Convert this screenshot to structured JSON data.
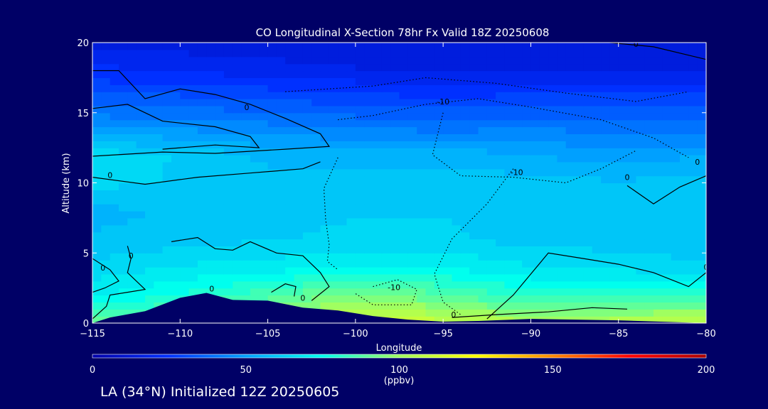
{
  "chart_data": {
    "type": "heatmap",
    "title": "CO Longitudinal X-Section 78hr  Fx Valid 18Z 20250608",
    "xlabel": "Longitude",
    "ylabel": "Altitude (km)",
    "xlim": [
      -115,
      -80
    ],
    "ylim": [
      0,
      20
    ],
    "x_ticks": [
      "-115",
      "-110",
      "-105",
      "-100",
      "-95",
      "-90",
      "-85",
      "-80"
    ],
    "y_ticks": [
      "0",
      "5",
      "10",
      "15",
      "20"
    ],
    "colorbar": {
      "label": "(ppbv)",
      "range": [
        0,
        200
      ],
      "ticks": [
        "0",
        "50",
        "100",
        "150",
        "200"
      ],
      "colors": [
        "#0000aa",
        "#0030ff",
        "#00a0ff",
        "#00ffee",
        "#a0ff60",
        "#ffff00",
        "#ff8800",
        "#ff0000",
        "#aa0000"
      ]
    },
    "co_field_ppbv": {
      "x": [
        -115,
        -110,
        -105,
        -100,
        -95,
        -90,
        -85,
        -80
      ],
      "y": [
        0,
        2,
        4,
        6,
        8,
        10,
        12,
        14,
        16,
        18,
        20
      ],
      "z": [
        [
          90,
          95,
          100,
          112,
          110,
          104,
          106,
          110
        ],
        [
          72,
          78,
          86,
          95,
          88,
          80,
          80,
          82
        ],
        [
          64,
          68,
          70,
          72,
          72,
          68,
          66,
          64
        ],
        [
          58,
          60,
          62,
          64,
          64,
          60,
          60,
          58
        ],
        [
          56,
          58,
          60,
          62,
          62,
          60,
          58,
          58
        ],
        [
          64,
          62,
          60,
          60,
          60,
          60,
          58,
          60
        ],
        [
          66,
          62,
          56,
          55,
          56,
          52,
          50,
          52
        ],
        [
          48,
          46,
          44,
          42,
          40,
          42,
          40,
          40
        ],
        [
          34,
          34,
          32,
          30,
          28,
          30,
          30,
          30
        ],
        [
          24,
          22,
          20,
          18,
          16,
          16,
          16,
          16
        ],
        [
          16,
          15,
          14,
          14,
          12,
          12,
          12,
          12
        ]
      ]
    },
    "contour_labels": [
      {
        "text": "0",
        "x": -108.2,
        "y": 2.45
      },
      {
        "text": "0",
        "x": -112.8,
        "y": 4.8
      },
      {
        "text": "0",
        "x": -114.4,
        "y": 3.95
      },
      {
        "text": "0",
        "x": -103.0,
        "y": 1.8
      },
      {
        "text": "0",
        "x": -114.0,
        "y": 10.55
      },
      {
        "text": "0",
        "x": -106.2,
        "y": 15.4
      },
      {
        "text": "0",
        "x": -84.5,
        "y": 10.4
      },
      {
        "text": "0",
        "x": -80.5,
        "y": 11.5
      },
      {
        "text": "0",
        "x": -80.0,
        "y": 4.0
      },
      {
        "text": "0",
        "x": -84.0,
        "y": 19.9
      },
      {
        "text": "0",
        "x": -94.4,
        "y": 0.6
      },
      {
        "text": "-10",
        "x": -95.0,
        "y": 15.8
      },
      {
        "text": "-10",
        "x": -90.8,
        "y": 10.75
      },
      {
        "text": "-10",
        "x": -97.8,
        "y": 2.55
      }
    ],
    "terrain": {
      "x": [
        -115,
        -114,
        -112,
        -110,
        -108.5,
        -107,
        -105,
        -103,
        -101,
        -99,
        -97,
        -95,
        -93,
        -90,
        -85,
        -80
      ],
      "y": [
        0,
        0.4,
        0.85,
        1.8,
        2.15,
        1.65,
        1.6,
        1.1,
        0.9,
        0.5,
        0.25,
        0.1,
        0.15,
        0.3,
        0.2,
        0
      ]
    },
    "grid": false
  },
  "footer": "LA (34°N) Initialized 12Z 20250605"
}
